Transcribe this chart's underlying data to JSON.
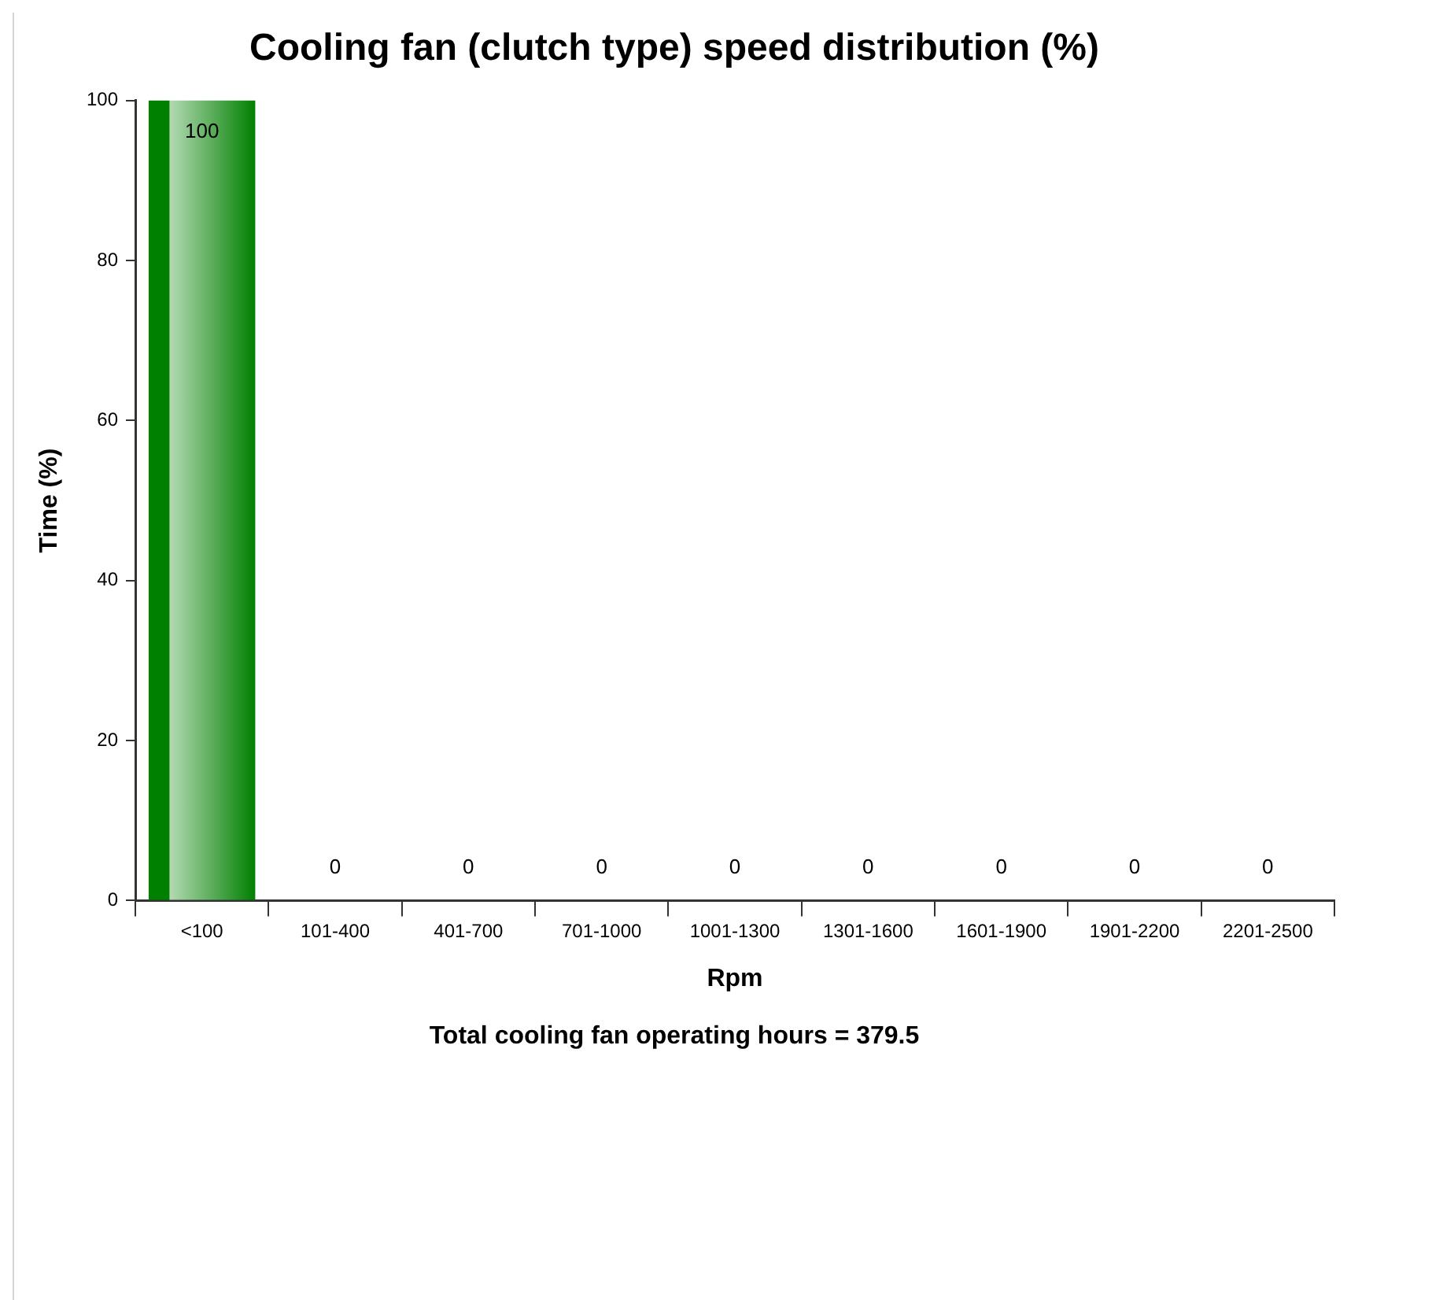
{
  "chart_data": {
    "type": "bar",
    "title": "Cooling fan (clutch type) speed distribution (%)",
    "xlabel": "Rpm",
    "ylabel": "Time (%)",
    "annotations": [
      "Total cooling fan operating hours = 379.5"
    ],
    "categories": [
      "<100",
      "101-400",
      "401-700",
      "701-1000",
      "1001-1300",
      "1301-1600",
      "1601-1900",
      "1901-2200",
      "2201-2500"
    ],
    "values": [
      100,
      0,
      0,
      0,
      0,
      0,
      0,
      0,
      0
    ],
    "color": "#008000",
    "ylim": [
      0,
      100
    ],
    "yticks": [
      0,
      20,
      40,
      60,
      80,
      100
    ],
    "grid": false,
    "legend": false,
    "data_labels": true
  }
}
